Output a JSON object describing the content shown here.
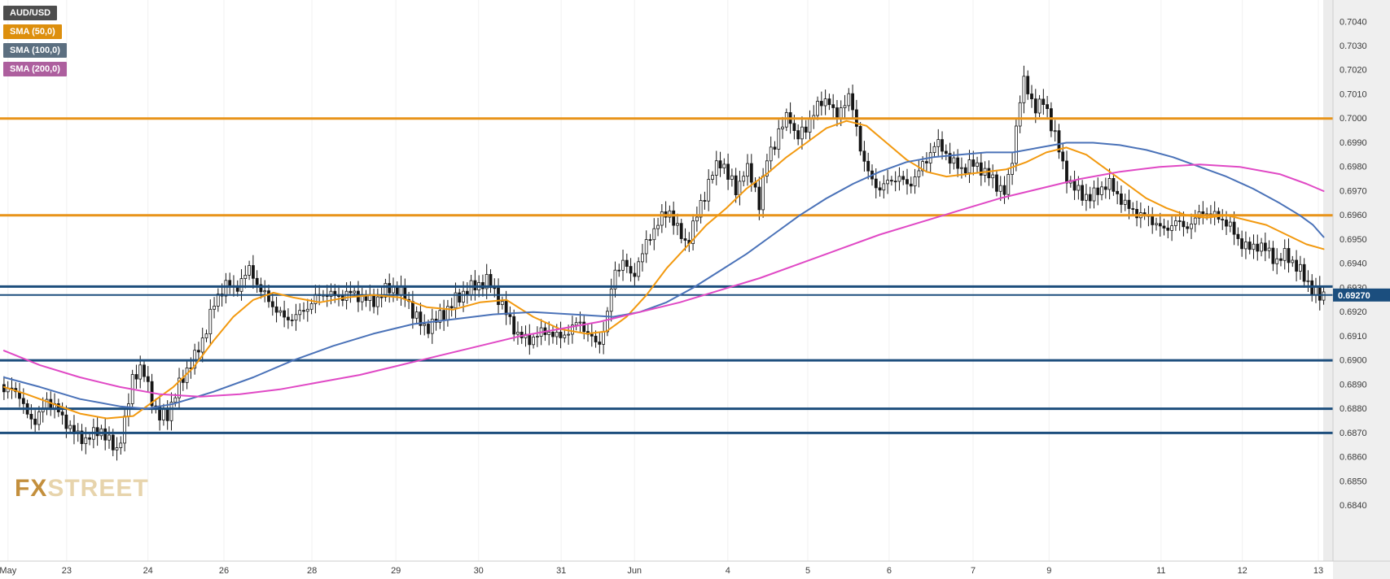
{
  "legend": {
    "symbol": {
      "label": "AUD/USD",
      "bg": "#4d4d4d"
    },
    "indicators": [
      {
        "label": "SMA (50,0)",
        "bg": "#dd8f0d"
      },
      {
        "label": "SMA (100,0)",
        "bg": "#5c6f80"
      },
      {
        "label": "SMA (200,0)",
        "bg": "#ad5f9e"
      }
    ]
  },
  "watermark": {
    "part1": "FX",
    "part2": "STREET"
  },
  "chart_data": {
    "type": "candlestick",
    "symbol": "AUD/USD",
    "background": "#ffffff",
    "axis_strip_bg": "#efefef",
    "pre_axis_band_bg": "#ececec",
    "grid_color": "#f1f1f1",
    "axis_text_color": "#3a3a3a",
    "y_axis": {
      "min": 0.6817,
      "max": 0.7049,
      "tick_start": 0.684,
      "tick_end": 0.704,
      "tick_step": 0.001,
      "decimals": 4
    },
    "x_axis": {
      "ticks": [
        {
          "label": "May",
          "x": 0.006
        },
        {
          "label": "23",
          "x": 0.05
        },
        {
          "label": "24",
          "x": 0.111
        },
        {
          "label": "26",
          "x": 0.168
        },
        {
          "label": "28",
          "x": 0.234
        },
        {
          "label": "29",
          "x": 0.297
        },
        {
          "label": "30",
          "x": 0.359
        },
        {
          "label": "31",
          "x": 0.421
        },
        {
          "label": "Jun",
          "x": 0.476
        },
        {
          "label": "4",
          "x": 0.546
        },
        {
          "label": "5",
          "x": 0.606
        },
        {
          "label": "6",
          "x": 0.667
        },
        {
          "label": "7",
          "x": 0.73
        },
        {
          "label": "9",
          "x": 0.787
        },
        {
          "label": "11",
          "x": 0.871
        },
        {
          "label": "12",
          "x": 0.932
        },
        {
          "label": "13",
          "x": 0.989
        }
      ]
    },
    "current_price": {
      "value": 0.6927,
      "label": "0.69270",
      "bg": "#1b4e7e",
      "text_color": "#ffffff"
    },
    "horizontal_lines": [
      {
        "price": 0.7,
        "color": "#e8941a",
        "width": 3
      },
      {
        "price": 0.696,
        "color": "#e8941a",
        "width": 3
      },
      {
        "price": 0.69305,
        "color": "#1d4e7d",
        "width": 3
      },
      {
        "price": 0.6927,
        "color": "#1d4e7d",
        "width": 2
      },
      {
        "price": 0.69,
        "color": "#1d4e7d",
        "width": 3
      },
      {
        "price": 0.688,
        "color": "#1d4e7d",
        "width": 3
      },
      {
        "price": 0.687,
        "color": "#1d4e7d",
        "width": 3
      }
    ],
    "candles": {
      "count": 340,
      "up_fill": "#ffffff",
      "down_fill": "#161616",
      "outline": "#161616",
      "body_width": 3
    },
    "price_path": [
      [
        0.003,
        0.6886
      ],
      [
        0.01,
        0.689
      ],
      [
        0.018,
        0.688
      ],
      [
        0.027,
        0.6874
      ],
      [
        0.035,
        0.6884
      ],
      [
        0.045,
        0.6878
      ],
      [
        0.055,
        0.687
      ],
      [
        0.065,
        0.6867
      ],
      [
        0.075,
        0.6872
      ],
      [
        0.082,
        0.6866
      ],
      [
        0.088,
        0.6863
      ],
      [
        0.094,
        0.6875
      ],
      [
        0.1,
        0.6895
      ],
      [
        0.107,
        0.6896
      ],
      [
        0.113,
        0.6886
      ],
      [
        0.119,
        0.6876
      ],
      [
        0.126,
        0.6878
      ],
      [
        0.133,
        0.6888
      ],
      [
        0.14,
        0.6896
      ],
      [
        0.147,
        0.6902
      ],
      [
        0.153,
        0.691
      ],
      [
        0.159,
        0.6921
      ],
      [
        0.165,
        0.6928
      ],
      [
        0.17,
        0.6932
      ],
      [
        0.176,
        0.6929
      ],
      [
        0.182,
        0.6934
      ],
      [
        0.188,
        0.6938
      ],
      [
        0.194,
        0.693
      ],
      [
        0.2,
        0.6926
      ],
      [
        0.207,
        0.6921
      ],
      [
        0.214,
        0.6917
      ],
      [
        0.221,
        0.6918
      ],
      [
        0.229,
        0.6921
      ],
      [
        0.237,
        0.6926
      ],
      [
        0.245,
        0.6928
      ],
      [
        0.253,
        0.6926
      ],
      [
        0.262,
        0.6928
      ],
      [
        0.271,
        0.6926
      ],
      [
        0.28,
        0.6924
      ],
      [
        0.289,
        0.6929
      ],
      [
        0.296,
        0.693
      ],
      [
        0.303,
        0.6927
      ],
      [
        0.311,
        0.6919
      ],
      [
        0.318,
        0.6913
      ],
      [
        0.326,
        0.6916
      ],
      [
        0.334,
        0.692
      ],
      [
        0.342,
        0.6925
      ],
      [
        0.35,
        0.6929
      ],
      [
        0.358,
        0.6931
      ],
      [
        0.365,
        0.6933
      ],
      [
        0.372,
        0.6928
      ],
      [
        0.38,
        0.6919
      ],
      [
        0.388,
        0.6911
      ],
      [
        0.396,
        0.6908
      ],
      [
        0.404,
        0.6911
      ],
      [
        0.412,
        0.6912
      ],
      [
        0.42,
        0.6909
      ],
      [
        0.428,
        0.6913
      ],
      [
        0.435,
        0.6916
      ],
      [
        0.442,
        0.691
      ],
      [
        0.449,
        0.6906
      ],
      [
        0.455,
        0.6917
      ],
      [
        0.461,
        0.6937
      ],
      [
        0.468,
        0.6941
      ],
      [
        0.474,
        0.6934
      ],
      [
        0.481,
        0.6943
      ],
      [
        0.488,
        0.6952
      ],
      [
        0.495,
        0.6958
      ],
      [
        0.502,
        0.6962
      ],
      [
        0.509,
        0.6953
      ],
      [
        0.515,
        0.6948
      ],
      [
        0.521,
        0.6957
      ],
      [
        0.528,
        0.6968
      ],
      [
        0.535,
        0.6978
      ],
      [
        0.541,
        0.6983
      ],
      [
        0.547,
        0.6975
      ],
      [
        0.553,
        0.697
      ],
      [
        0.559,
        0.698
      ],
      [
        0.565,
        0.6974
      ],
      [
        0.57,
        0.6964
      ],
      [
        0.575,
        0.6983
      ],
      [
        0.581,
        0.699
      ],
      [
        0.587,
        0.6997
      ],
      [
        0.592,
        0.7003
      ],
      [
        0.597,
        0.6991
      ],
      [
        0.603,
        0.6995
      ],
      [
        0.609,
        0.7001
      ],
      [
        0.615,
        0.7006
      ],
      [
        0.621,
        0.7009
      ],
      [
        0.627,
        0.6999
      ],
      [
        0.632,
        0.7006
      ],
      [
        0.637,
        0.7009
      ],
      [
        0.642,
        0.6998
      ],
      [
        0.647,
        0.6984
      ],
      [
        0.653,
        0.6975
      ],
      [
        0.66,
        0.6971
      ],
      [
        0.667,
        0.6974
      ],
      [
        0.674,
        0.6976
      ],
      [
        0.681,
        0.6972
      ],
      [
        0.688,
        0.6977
      ],
      [
        0.695,
        0.6983
      ],
      [
        0.702,
        0.699
      ],
      [
        0.708,
        0.6987
      ],
      [
        0.714,
        0.6982
      ],
      [
        0.721,
        0.6979
      ],
      [
        0.728,
        0.6981
      ],
      [
        0.735,
        0.698
      ],
      [
        0.742,
        0.6976
      ],
      [
        0.749,
        0.6972
      ],
      [
        0.755,
        0.6969
      ],
      [
        0.76,
        0.6986
      ],
      [
        0.765,
        0.7008
      ],
      [
        0.769,
        0.7016
      ],
      [
        0.773,
        0.7008
      ],
      [
        0.778,
        0.7004
      ],
      [
        0.783,
        0.7007
      ],
      [
        0.788,
        0.6999
      ],
      [
        0.793,
        0.699
      ],
      [
        0.798,
        0.6979
      ],
      [
        0.804,
        0.6972
      ],
      [
        0.811,
        0.6969
      ],
      [
        0.818,
        0.6967
      ],
      [
        0.825,
        0.6971
      ],
      [
        0.832,
        0.6973
      ],
      [
        0.839,
        0.6968
      ],
      [
        0.846,
        0.6963
      ],
      [
        0.853,
        0.6961
      ],
      [
        0.86,
        0.6959
      ],
      [
        0.867,
        0.6957
      ],
      [
        0.874,
        0.6953
      ],
      [
        0.881,
        0.6958
      ],
      [
        0.888,
        0.6955
      ],
      [
        0.895,
        0.6957
      ],
      [
        0.902,
        0.6962
      ],
      [
        0.909,
        0.696
      ],
      [
        0.916,
        0.6959
      ],
      [
        0.923,
        0.6955
      ],
      [
        0.93,
        0.6949
      ],
      [
        0.937,
        0.6946
      ],
      [
        0.944,
        0.6948
      ],
      [
        0.951,
        0.6945
      ],
      [
        0.958,
        0.6941
      ],
      [
        0.965,
        0.6944
      ],
      [
        0.972,
        0.6939
      ],
      [
        0.979,
        0.6934
      ],
      [
        0.985,
        0.6929
      ],
      [
        0.99,
        0.6926
      ],
      [
        0.993,
        0.6927
      ]
    ],
    "series": [
      {
        "name": "SMA (50,0)",
        "color": "#f2990f",
        "points": [
          [
            0.003,
            0.6889
          ],
          [
            0.02,
            0.6886
          ],
          [
            0.04,
            0.6882
          ],
          [
            0.06,
            0.6878
          ],
          [
            0.08,
            0.6876
          ],
          [
            0.1,
            0.6877
          ],
          [
            0.115,
            0.6883
          ],
          [
            0.13,
            0.6889
          ],
          [
            0.145,
            0.6897
          ],
          [
            0.16,
            0.6908
          ],
          [
            0.175,
            0.6918
          ],
          [
            0.19,
            0.6925
          ],
          [
            0.205,
            0.6928
          ],
          [
            0.22,
            0.6926
          ],
          [
            0.24,
            0.6924
          ],
          [
            0.26,
            0.6926
          ],
          [
            0.28,
            0.6927
          ],
          [
            0.3,
            0.6926
          ],
          [
            0.32,
            0.6922
          ],
          [
            0.34,
            0.6921
          ],
          [
            0.36,
            0.6924
          ],
          [
            0.38,
            0.6925
          ],
          [
            0.4,
            0.6918
          ],
          [
            0.42,
            0.6913
          ],
          [
            0.44,
            0.6911
          ],
          [
            0.455,
            0.6912
          ],
          [
            0.47,
            0.6918
          ],
          [
            0.485,
            0.6927
          ],
          [
            0.5,
            0.6938
          ],
          [
            0.515,
            0.6947
          ],
          [
            0.53,
            0.6956
          ],
          [
            0.545,
            0.6963
          ],
          [
            0.56,
            0.6971
          ],
          [
            0.575,
            0.6977
          ],
          [
            0.59,
            0.6984
          ],
          [
            0.605,
            0.699
          ],
          [
            0.62,
            0.6996
          ],
          [
            0.635,
            0.6999
          ],
          [
            0.65,
            0.6997
          ],
          [
            0.665,
            0.699
          ],
          [
            0.68,
            0.6983
          ],
          [
            0.695,
            0.6978
          ],
          [
            0.71,
            0.6976
          ],
          [
            0.725,
            0.6977
          ],
          [
            0.74,
            0.6978
          ],
          [
            0.755,
            0.6979
          ],
          [
            0.77,
            0.6982
          ],
          [
            0.785,
            0.6986
          ],
          [
            0.8,
            0.6988
          ],
          [
            0.815,
            0.6985
          ],
          [
            0.83,
            0.6979
          ],
          [
            0.845,
            0.6973
          ],
          [
            0.86,
            0.6967
          ],
          [
            0.875,
            0.6963
          ],
          [
            0.89,
            0.696
          ],
          [
            0.905,
            0.6959
          ],
          [
            0.92,
            0.696
          ],
          [
            0.935,
            0.6958
          ],
          [
            0.95,
            0.6956
          ],
          [
            0.965,
            0.6952
          ],
          [
            0.98,
            0.6948
          ],
          [
            0.993,
            0.6946
          ]
        ]
      },
      {
        "name": "SMA (100,0)",
        "color": "#4a72b8",
        "points": [
          [
            0.003,
            0.6893
          ],
          [
            0.03,
            0.6889
          ],
          [
            0.06,
            0.6884
          ],
          [
            0.09,
            0.6881
          ],
          [
            0.11,
            0.688
          ],
          [
            0.13,
            0.6882
          ],
          [
            0.16,
            0.6887
          ],
          [
            0.19,
            0.6893
          ],
          [
            0.22,
            0.69
          ],
          [
            0.25,
            0.6906
          ],
          [
            0.28,
            0.6911
          ],
          [
            0.31,
            0.6915
          ],
          [
            0.34,
            0.6917
          ],
          [
            0.37,
            0.6919
          ],
          [
            0.4,
            0.692
          ],
          [
            0.43,
            0.6919
          ],
          [
            0.46,
            0.6918
          ],
          [
            0.48,
            0.692
          ],
          [
            0.5,
            0.6924
          ],
          [
            0.52,
            0.693
          ],
          [
            0.54,
            0.6937
          ],
          [
            0.56,
            0.6944
          ],
          [
            0.58,
            0.6952
          ],
          [
            0.6,
            0.696
          ],
          [
            0.62,
            0.6967
          ],
          [
            0.64,
            0.6973
          ],
          [
            0.66,
            0.6978
          ],
          [
            0.68,
            0.6982
          ],
          [
            0.7,
            0.6984
          ],
          [
            0.72,
            0.6985
          ],
          [
            0.74,
            0.6986
          ],
          [
            0.76,
            0.6986
          ],
          [
            0.78,
            0.6988
          ],
          [
            0.8,
            0.699
          ],
          [
            0.82,
            0.699
          ],
          [
            0.84,
            0.6989
          ],
          [
            0.86,
            0.6987
          ],
          [
            0.88,
            0.6984
          ],
          [
            0.9,
            0.698
          ],
          [
            0.92,
            0.6976
          ],
          [
            0.94,
            0.6971
          ],
          [
            0.96,
            0.6965
          ],
          [
            0.975,
            0.696
          ],
          [
            0.985,
            0.6956
          ],
          [
            0.993,
            0.6951
          ]
        ]
      },
      {
        "name": "SMA (200,0)",
        "color": "#e049c5",
        "points": [
          [
            0.003,
            0.6904
          ],
          [
            0.03,
            0.6898
          ],
          [
            0.06,
            0.6893
          ],
          [
            0.09,
            0.6889
          ],
          [
            0.12,
            0.6886
          ],
          [
            0.15,
            0.6885
          ],
          [
            0.18,
            0.6886
          ],
          [
            0.21,
            0.6888
          ],
          [
            0.24,
            0.6891
          ],
          [
            0.27,
            0.6894
          ],
          [
            0.3,
            0.6898
          ],
          [
            0.33,
            0.6902
          ],
          [
            0.36,
            0.6906
          ],
          [
            0.39,
            0.691
          ],
          [
            0.42,
            0.6913
          ],
          [
            0.45,
            0.6916
          ],
          [
            0.48,
            0.692
          ],
          [
            0.51,
            0.6924
          ],
          [
            0.54,
            0.6929
          ],
          [
            0.57,
            0.6934
          ],
          [
            0.6,
            0.694
          ],
          [
            0.63,
            0.6946
          ],
          [
            0.66,
            0.6952
          ],
          [
            0.69,
            0.6957
          ],
          [
            0.72,
            0.6962
          ],
          [
            0.75,
            0.6967
          ],
          [
            0.78,
            0.6971
          ],
          [
            0.81,
            0.6975
          ],
          [
            0.84,
            0.6978
          ],
          [
            0.87,
            0.698
          ],
          [
            0.9,
            0.6981
          ],
          [
            0.93,
            0.698
          ],
          [
            0.96,
            0.6977
          ],
          [
            0.98,
            0.6973
          ],
          [
            0.993,
            0.697
          ]
        ]
      }
    ]
  }
}
